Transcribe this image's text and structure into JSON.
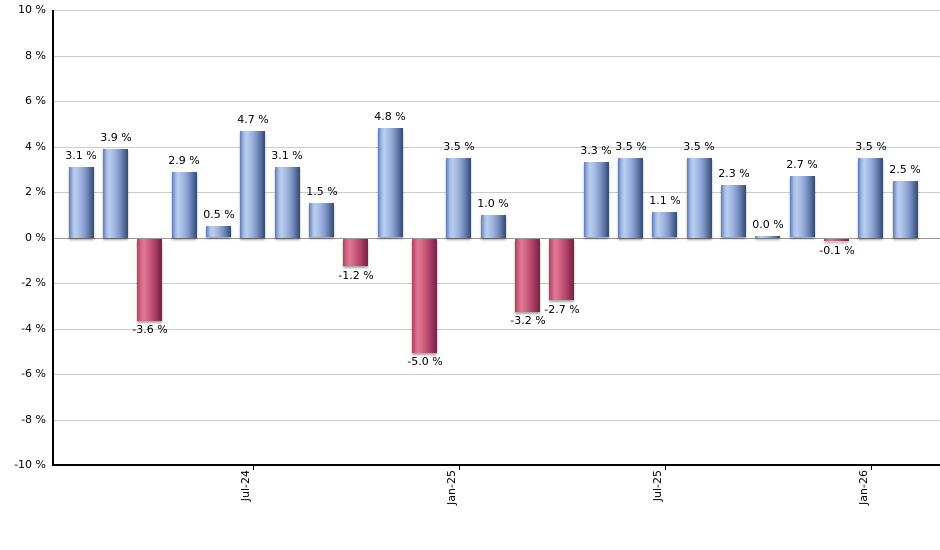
{
  "chart_data": {
    "type": "bar",
    "title": "",
    "unit": "%",
    "values": [
      3.1,
      3.9,
      -3.6,
      2.9,
      0.5,
      4.7,
      3.1,
      1.5,
      -1.2,
      4.8,
      -5.0,
      3.5,
      1.0,
      -3.2,
      -2.7,
      3.3,
      3.5,
      1.1,
      3.5,
      2.3,
      0.0,
      2.7,
      -0.1,
      3.5,
      2.5
    ],
    "bar_labels": [
      "3.1 %",
      "3.9 %",
      "-3.6 %",
      "2.9 %",
      "0.5 %",
      "4.7 %",
      "3.1 %",
      "1.5 %",
      "-1.2 %",
      "4.8 %",
      "-5.0 %",
      "3.5 %",
      "1.0 %",
      "-3.2 %",
      "-2.7 %",
      "3.3 %",
      "3.5 %",
      "1.1 %",
      "3.5 %",
      "2.3 %",
      "0.0 %",
      "2.7 %",
      "-0.1 %",
      "3.5 %",
      "2.5 %"
    ],
    "x_ticks": [
      {
        "label": "Jul-24",
        "bar_index": 5
      },
      {
        "label": "Jan-25",
        "bar_index": 11
      },
      {
        "label": "Jul-25",
        "bar_index": 17
      },
      {
        "label": "Jan-26",
        "bar_index": 23
      }
    ],
    "y_tick_labels": [
      "10 %",
      "8 %",
      "6 %",
      "4 %",
      "2 %",
      "0 %",
      "-2 %",
      "-4 %",
      "-6 %",
      "-8 %",
      "-10 %"
    ],
    "ylim": [
      -10,
      10
    ],
    "y_step": 2,
    "grid": true,
    "legend": "none",
    "colors": {
      "positive_bar_edge": "#35496f",
      "positive_bar_highlight": "#bacdf0",
      "positive_bar_mid": "#7b93c4",
      "negative_bar_edge": "#7c2040",
      "negative_bar_highlight": "#de7795",
      "negative_bar_mid": "#cb5a7b",
      "gridline": "#cccccc",
      "zero_line": "#999999",
      "axis": "#000000",
      "text": "#000000"
    }
  }
}
